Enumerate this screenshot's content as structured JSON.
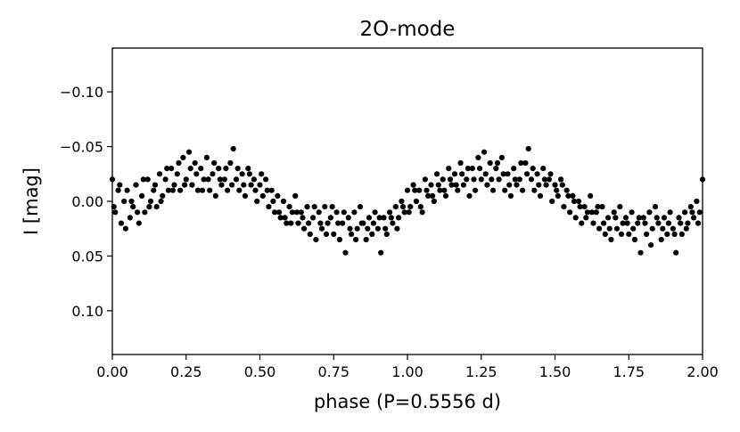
{
  "chart_data": {
    "type": "scatter",
    "title": "2O-mode",
    "xlabel": "phase (P=0.5556 d)",
    "ylabel": "I [mag]",
    "xlim": [
      0.0,
      2.0
    ],
    "ylim": [
      0.14,
      -0.14
    ],
    "y_inverted": true,
    "grid": false,
    "marker_color": "#000000",
    "x_ticks": [
      0.0,
      0.25,
      0.5,
      0.75,
      1.0,
      1.25,
      1.5,
      1.75,
      2.0
    ],
    "x_tick_labels": [
      "0.00",
      "0.25",
      "0.50",
      "0.75",
      "1.00",
      "1.25",
      "1.50",
      "1.75",
      "2.00"
    ],
    "y_ticks": [
      -0.1,
      -0.05,
      0.0,
      0.05,
      0.1
    ],
    "y_tick_labels": [
      "−0.10",
      "−0.05",
      "0.00",
      "0.05",
      "0.10"
    ],
    "points": [
      [
        0.0,
        -0.02
      ],
      [
        0.01,
        0.01
      ],
      [
        0.02,
        -0.01
      ],
      [
        0.03,
        0.02
      ],
      [
        0.04,
        0.0
      ],
      [
        0.05,
        -0.01
      ],
      [
        0.06,
        0.015
      ],
      [
        0.07,
        0.005
      ],
      [
        0.08,
        -0.015
      ],
      [
        0.09,
        0.02
      ],
      [
        0.1,
        -0.005
      ],
      [
        0.11,
        0.01
      ],
      [
        0.12,
        -0.02
      ],
      [
        0.13,
        0.0
      ],
      [
        0.14,
        -0.01
      ],
      [
        0.15,
        0.005
      ],
      [
        0.16,
        -0.025
      ],
      [
        0.17,
        -0.005
      ],
      [
        0.18,
        -0.02
      ],
      [
        0.19,
        -0.01
      ],
      [
        0.2,
        -0.03
      ],
      [
        0.21,
        -0.015
      ],
      [
        0.22,
        -0.025
      ],
      [
        0.23,
        -0.01
      ],
      [
        0.24,
        -0.04
      ],
      [
        0.25,
        -0.02
      ],
      [
        0.26,
        -0.045
      ],
      [
        0.27,
        -0.015
      ],
      [
        0.28,
        -0.035
      ],
      [
        0.29,
        -0.01
      ],
      [
        0.3,
        -0.03
      ],
      [
        0.31,
        -0.02
      ],
      [
        0.32,
        -0.04
      ],
      [
        0.33,
        -0.01
      ],
      [
        0.34,
        -0.025
      ],
      [
        0.35,
        -0.005
      ],
      [
        0.36,
        -0.03
      ],
      [
        0.37,
        -0.015
      ],
      [
        0.38,
        -0.02
      ],
      [
        0.39,
        -0.01
      ],
      [
        0.4,
        -0.035
      ],
      [
        0.41,
        -0.048
      ],
      [
        0.42,
        -0.02
      ],
      [
        0.43,
        -0.01
      ],
      [
        0.44,
        -0.025
      ],
      [
        0.45,
        -0.005
      ],
      [
        0.46,
        -0.03
      ],
      [
        0.47,
        -0.015
      ],
      [
        0.48,
        -0.02
      ],
      [
        0.49,
        0.0
      ],
      [
        0.5,
        -0.015
      ],
      [
        0.51,
        -0.005
      ],
      [
        0.52,
        -0.02
      ],
      [
        0.53,
        0.005
      ],
      [
        0.54,
        -0.01
      ],
      [
        0.55,
        0.01
      ],
      [
        0.56,
        -0.005
      ],
      [
        0.57,
        0.015
      ],
      [
        0.58,
        0.0
      ],
      [
        0.59,
        0.02
      ],
      [
        0.6,
        0.005
      ],
      [
        0.61,
        0.01
      ],
      [
        0.62,
        -0.005
      ],
      [
        0.63,
        0.02
      ],
      [
        0.64,
        0.01
      ],
      [
        0.65,
        0.025
      ],
      [
        0.66,
        0.005
      ],
      [
        0.67,
        0.03
      ],
      [
        0.68,
        0.015
      ],
      [
        0.69,
        0.035
      ],
      [
        0.7,
        0.01
      ],
      [
        0.71,
        0.025
      ],
      [
        0.72,
        0.005
      ],
      [
        0.73,
        0.02
      ],
      [
        0.74,
        0.015
      ],
      [
        0.75,
        0.03
      ],
      [
        0.76,
        0.01
      ],
      [
        0.77,
        0.035
      ],
      [
        0.78,
        0.02
      ],
      [
        0.79,
        0.047
      ],
      [
        0.8,
        0.015
      ],
      [
        0.81,
        0.03
      ],
      [
        0.82,
        0.01
      ],
      [
        0.83,
        0.025
      ],
      [
        0.84,
        0.005
      ],
      [
        0.85,
        0.02
      ],
      [
        0.86,
        0.035
      ],
      [
        0.87,
        0.015
      ],
      [
        0.88,
        0.03
      ],
      [
        0.89,
        0.01
      ],
      [
        0.9,
        0.025
      ],
      [
        0.91,
        0.047
      ],
      [
        0.92,
        0.015
      ],
      [
        0.93,
        0.03
      ],
      [
        0.94,
        0.01
      ],
      [
        0.95,
        0.02
      ],
      [
        0.96,
        0.005
      ],
      [
        0.97,
        0.015
      ],
      [
        0.98,
        0.0
      ],
      [
        0.99,
        0.01
      ],
      [
        1.0,
        -0.01
      ],
      [
        1.01,
        0.005
      ],
      [
        1.02,
        -0.015
      ],
      [
        1.03,
        0.0
      ],
      [
        1.04,
        -0.01
      ],
      [
        1.05,
        0.01
      ],
      [
        1.06,
        -0.02
      ],
      [
        1.07,
        -0.005
      ],
      [
        1.08,
        -0.015
      ],
      [
        1.09,
        0.0
      ],
      [
        1.1,
        -0.025
      ],
      [
        1.11,
        -0.01
      ],
      [
        1.12,
        -0.02
      ],
      [
        1.13,
        -0.005
      ],
      [
        1.14,
        -0.03
      ],
      [
        1.15,
        -0.015
      ],
      [
        1.16,
        -0.025
      ],
      [
        1.17,
        -0.01
      ],
      [
        1.18,
        -0.035
      ],
      [
        1.19,
        -0.015
      ],
      [
        1.2,
        -0.02
      ],
      [
        1.21,
        -0.005
      ],
      [
        1.22,
        -0.03
      ],
      [
        1.23,
        -0.01
      ],
      [
        1.24,
        -0.04
      ],
      [
        1.25,
        -0.02
      ],
      [
        1.26,
        -0.045
      ],
      [
        1.27,
        -0.015
      ],
      [
        1.28,
        -0.035
      ],
      [
        1.29,
        -0.01
      ],
      [
        1.3,
        -0.03
      ],
      [
        1.31,
        -0.02
      ],
      [
        1.32,
        -0.04
      ],
      [
        1.33,
        -0.01
      ],
      [
        1.34,
        -0.025
      ],
      [
        1.35,
        -0.005
      ],
      [
        1.36,
        -0.03
      ],
      [
        1.37,
        -0.015
      ],
      [
        1.38,
        -0.02
      ],
      [
        1.39,
        -0.01
      ],
      [
        1.4,
        -0.035
      ],
      [
        1.41,
        -0.048
      ],
      [
        1.42,
        -0.02
      ],
      [
        1.43,
        -0.01
      ],
      [
        1.44,
        -0.025
      ],
      [
        1.45,
        -0.005
      ],
      [
        1.46,
        -0.03
      ],
      [
        1.47,
        -0.015
      ],
      [
        1.48,
        -0.02
      ],
      [
        1.49,
        0.0
      ],
      [
        1.5,
        -0.015
      ],
      [
        1.51,
        -0.005
      ],
      [
        1.52,
        -0.02
      ],
      [
        1.53,
        0.005
      ],
      [
        1.54,
        -0.01
      ],
      [
        1.55,
        0.01
      ],
      [
        1.56,
        -0.005
      ],
      [
        1.57,
        0.015
      ],
      [
        1.58,
        0.0
      ],
      [
        1.59,
        0.02
      ],
      [
        1.6,
        0.005
      ],
      [
        1.61,
        0.01
      ],
      [
        1.62,
        -0.005
      ],
      [
        1.63,
        0.02
      ],
      [
        1.64,
        0.01
      ],
      [
        1.65,
        0.025
      ],
      [
        1.66,
        0.005
      ],
      [
        1.67,
        0.03
      ],
      [
        1.68,
        0.015
      ],
      [
        1.69,
        0.035
      ],
      [
        1.7,
        0.01
      ],
      [
        1.71,
        0.025
      ],
      [
        1.72,
        0.005
      ],
      [
        1.73,
        0.02
      ],
      [
        1.74,
        0.015
      ],
      [
        1.75,
        0.03
      ],
      [
        1.76,
        0.01
      ],
      [
        1.77,
        0.035
      ],
      [
        1.78,
        0.02
      ],
      [
        1.79,
        0.047
      ],
      [
        1.8,
        0.015
      ],
      [
        1.81,
        0.03
      ],
      [
        1.82,
        0.01
      ],
      [
        1.83,
        0.025
      ],
      [
        1.84,
        0.005
      ],
      [
        1.85,
        0.02
      ],
      [
        1.86,
        0.035
      ],
      [
        1.87,
        0.015
      ],
      [
        1.88,
        0.03
      ],
      [
        1.89,
        0.01
      ],
      [
        1.9,
        0.025
      ],
      [
        1.91,
        0.047
      ],
      [
        1.92,
        0.015
      ],
      [
        1.93,
        0.03
      ],
      [
        1.94,
        0.01
      ],
      [
        1.95,
        0.02
      ],
      [
        1.96,
        0.005
      ],
      [
        1.97,
        0.015
      ],
      [
        1.98,
        0.0
      ],
      [
        1.99,
        0.01
      ],
      [
        0.005,
        0.005
      ],
      [
        0.025,
        -0.015
      ],
      [
        0.045,
        0.025
      ],
      [
        0.065,
        0.0
      ],
      [
        0.085,
        0.01
      ],
      [
        0.105,
        -0.02
      ],
      [
        0.125,
        0.005
      ],
      [
        0.145,
        -0.015
      ],
      [
        0.165,
        0.0
      ],
      [
        0.185,
        -0.03
      ],
      [
        0.205,
        -0.01
      ],
      [
        0.225,
        -0.035
      ],
      [
        0.245,
        -0.015
      ],
      [
        0.265,
        -0.03
      ],
      [
        0.285,
        -0.025
      ],
      [
        0.305,
        -0.01
      ],
      [
        0.325,
        -0.02
      ],
      [
        0.345,
        -0.035
      ],
      [
        0.365,
        -0.02
      ],
      [
        0.385,
        -0.03
      ],
      [
        0.405,
        -0.015
      ],
      [
        0.425,
        -0.03
      ],
      [
        0.445,
        -0.015
      ],
      [
        0.465,
        -0.025
      ],
      [
        0.485,
        -0.01
      ],
      [
        0.505,
        -0.025
      ],
      [
        0.525,
        -0.01
      ],
      [
        0.545,
        0.0
      ],
      [
        0.565,
        0.01
      ],
      [
        0.585,
        0.015
      ],
      [
        0.605,
        0.02
      ],
      [
        0.625,
        0.01
      ],
      [
        0.645,
        0.015
      ],
      [
        0.665,
        0.02
      ],
      [
        0.685,
        0.005
      ],
      [
        0.705,
        0.02
      ],
      [
        0.725,
        0.03
      ],
      [
        0.745,
        0.005
      ],
      [
        0.765,
        0.02
      ],
      [
        0.785,
        0.01
      ],
      [
        0.805,
        0.025
      ],
      [
        0.825,
        0.035
      ],
      [
        0.845,
        0.02
      ],
      [
        0.865,
        0.025
      ],
      [
        0.885,
        0.02
      ],
      [
        0.905,
        0.015
      ],
      [
        0.925,
        0.025
      ],
      [
        0.945,
        0.015
      ],
      [
        0.965,
        0.025
      ],
      [
        0.985,
        0.005
      ],
      [
        1.005,
        0.01
      ],
      [
        1.025,
        -0.01
      ],
      [
        1.045,
        0.005
      ],
      [
        1.065,
        -0.01
      ],
      [
        1.085,
        -0.005
      ],
      [
        1.105,
        -0.015
      ],
      [
        1.125,
        -0.01
      ],
      [
        1.145,
        -0.02
      ],
      [
        1.165,
        -0.015
      ],
      [
        1.185,
        -0.025
      ],
      [
        1.205,
        -0.03
      ],
      [
        1.225,
        -0.02
      ],
      [
        1.245,
        -0.03
      ],
      [
        1.265,
        -0.025
      ],
      [
        1.285,
        -0.02
      ],
      [
        1.305,
        -0.035
      ],
      [
        1.325,
        -0.025
      ],
      [
        1.345,
        -0.015
      ],
      [
        1.365,
        -0.02
      ],
      [
        1.385,
        -0.035
      ],
      [
        1.405,
        -0.025
      ],
      [
        1.425,
        -0.03
      ],
      [
        1.445,
        -0.015
      ],
      [
        1.465,
        -0.02
      ],
      [
        1.485,
        -0.025
      ],
      [
        1.505,
        -0.01
      ],
      [
        1.525,
        -0.015
      ],
      [
        1.545,
        -0.005
      ],
      [
        1.565,
        0.0
      ],
      [
        1.585,
        0.005
      ],
      [
        1.605,
        0.015
      ],
      [
        1.625,
        0.01
      ],
      [
        1.645,
        0.005
      ],
      [
        1.665,
        0.02
      ],
      [
        1.685,
        0.025
      ],
      [
        1.705,
        0.015
      ],
      [
        1.725,
        0.03
      ],
      [
        1.745,
        0.02
      ],
      [
        1.765,
        0.025
      ],
      [
        1.785,
        0.015
      ],
      [
        1.805,
        0.02
      ],
      [
        1.825,
        0.04
      ],
      [
        1.845,
        0.015
      ],
      [
        1.865,
        0.025
      ],
      [
        1.885,
        0.02
      ],
      [
        1.905,
        0.03
      ],
      [
        1.925,
        0.02
      ],
      [
        1.945,
        0.025
      ],
      [
        1.965,
        0.01
      ],
      [
        1.985,
        0.02
      ],
      [
        2.0,
        -0.02
      ]
    ]
  }
}
